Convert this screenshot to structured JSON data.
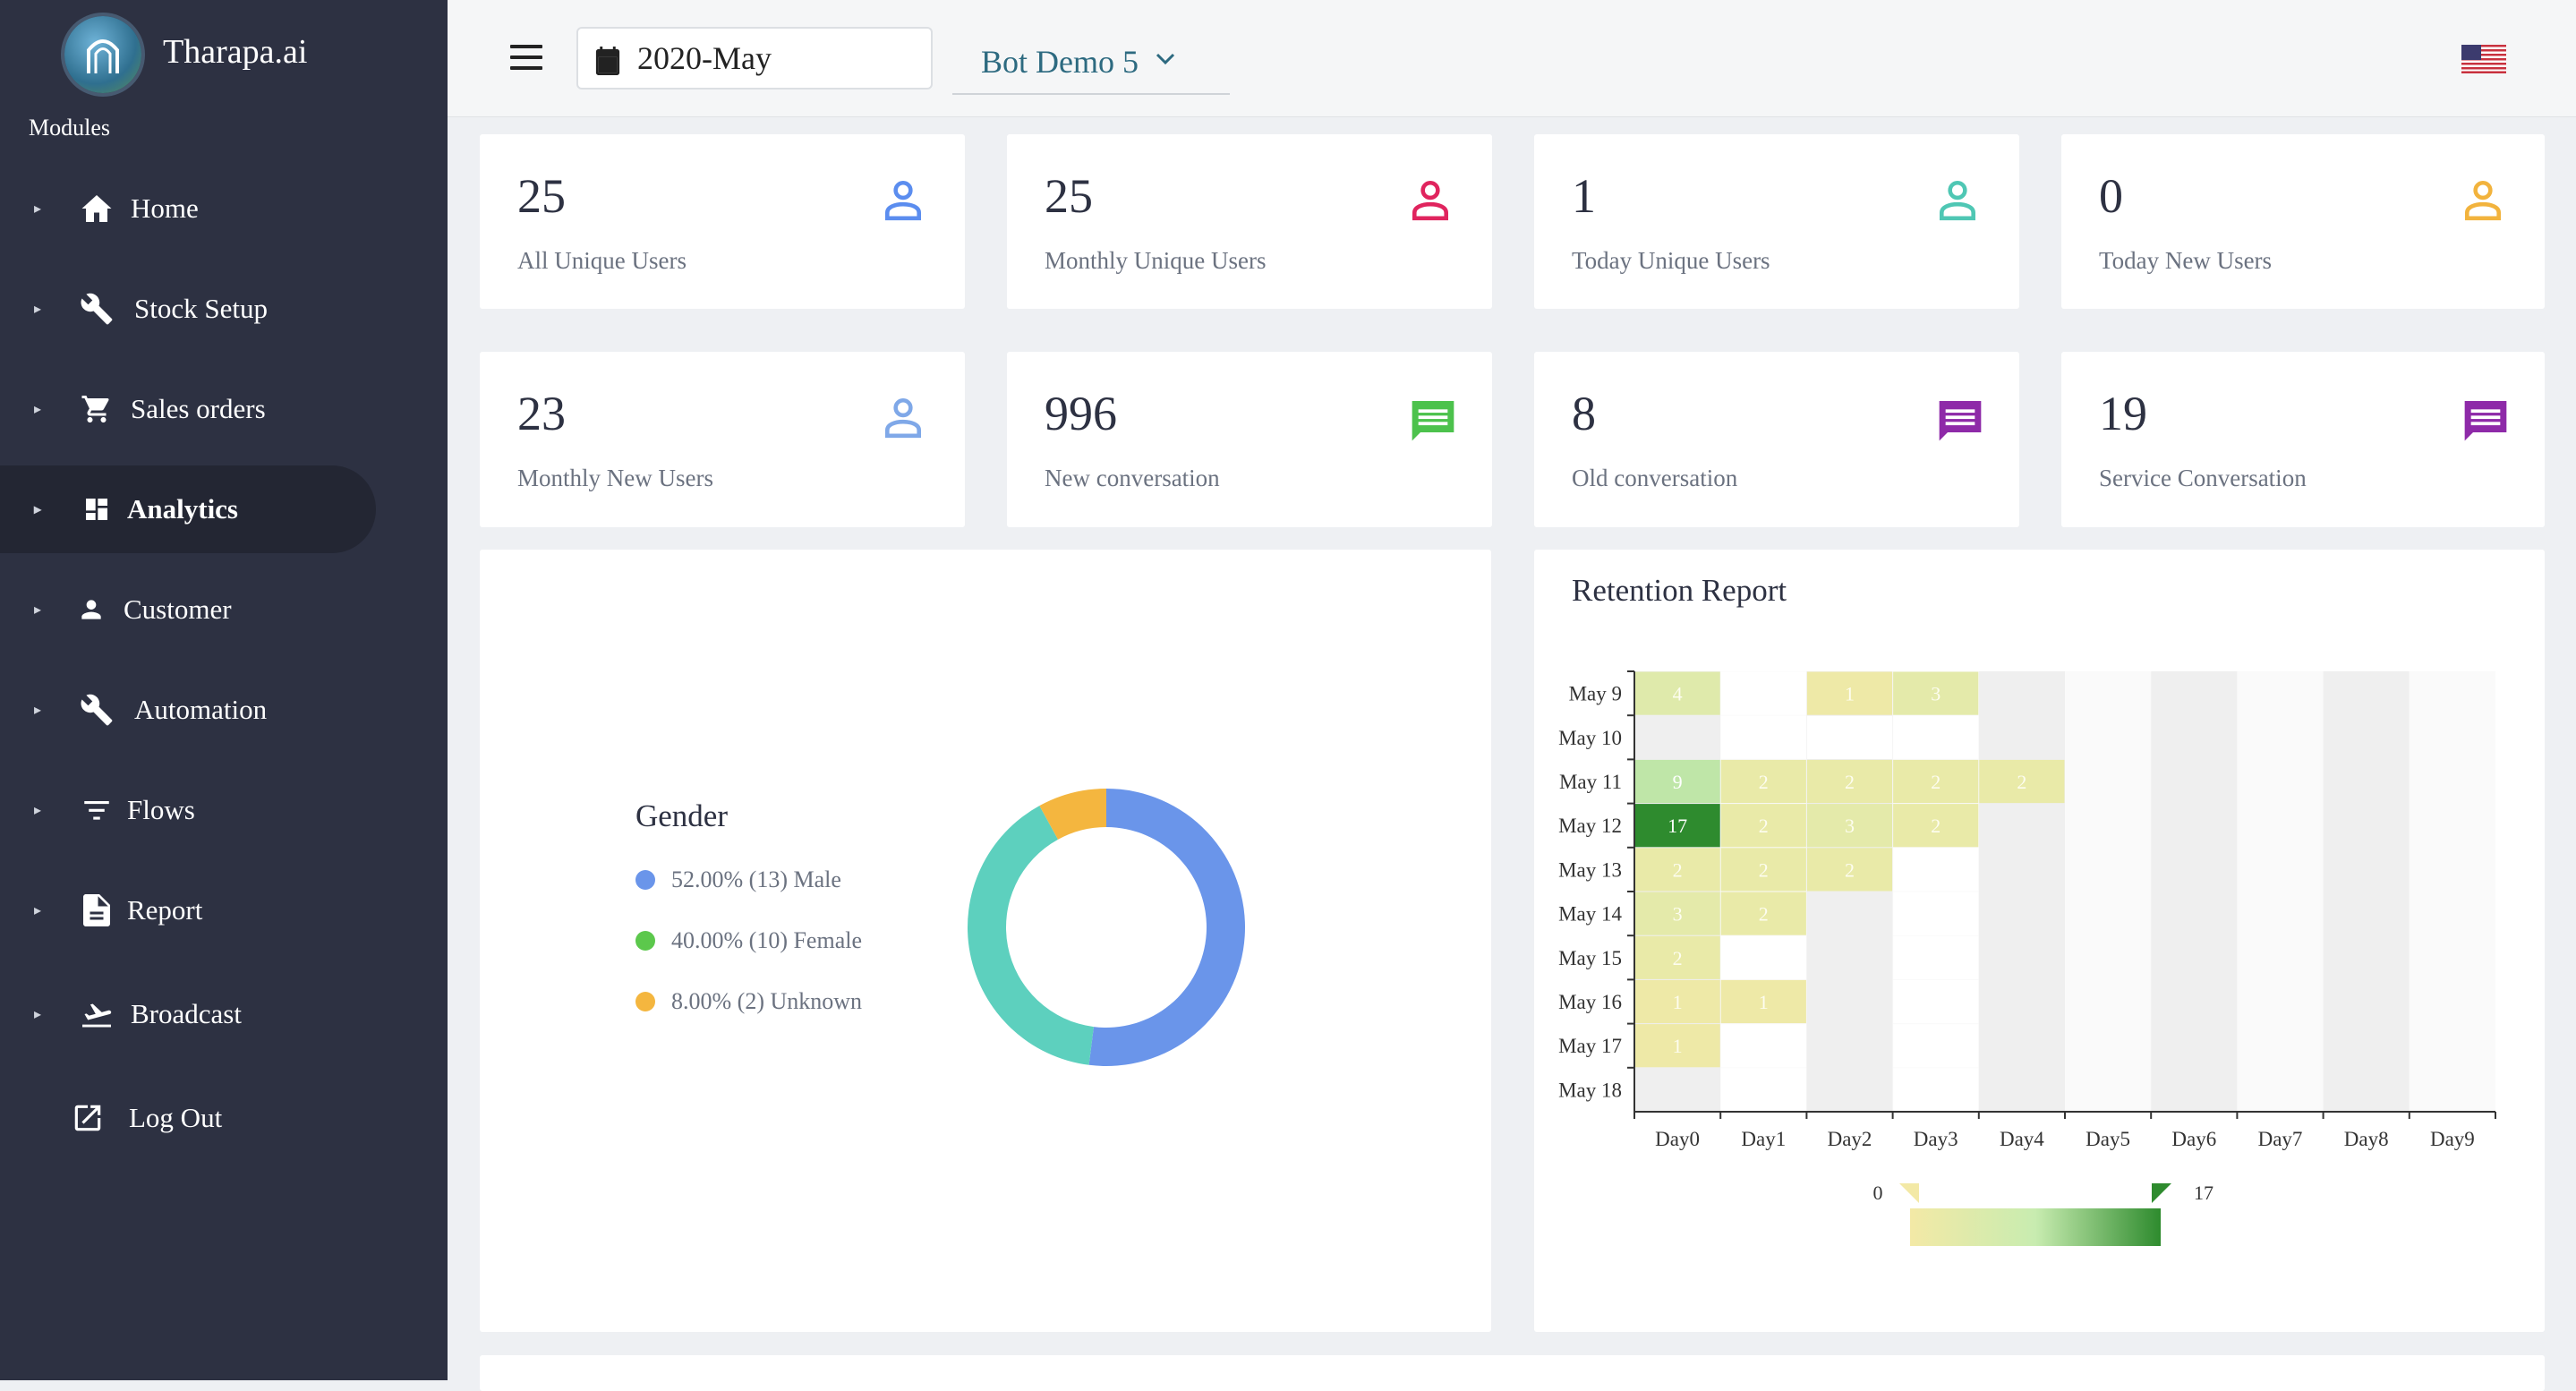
{
  "brand": {
    "name": "Tharapa.ai"
  },
  "sidebar": {
    "section_label": "Modules",
    "items": [
      {
        "label": "Home",
        "icon": "home-icon"
      },
      {
        "label": "Stock Setup",
        "icon": "wrench-icon"
      },
      {
        "label": "Sales orders",
        "icon": "cart-icon"
      },
      {
        "label": "Analytics",
        "icon": "dashboard-icon",
        "active": true
      },
      {
        "label": "Customer",
        "icon": "person-icon"
      },
      {
        "label": "Automation",
        "icon": "wrench-icon"
      },
      {
        "label": "Flows",
        "icon": "filter-icon"
      },
      {
        "label": "Report",
        "icon": "document-icon"
      },
      {
        "label": "Broadcast",
        "icon": "flight-takeoff-icon"
      },
      {
        "label": "Log Out",
        "icon": "external-link-icon"
      }
    ]
  },
  "header": {
    "date_value": "2020-May",
    "bot_selected": "Bot Demo 5",
    "language_flag": "us-flag-icon"
  },
  "stats": [
    {
      "value": "25",
      "label": "All Unique Users",
      "icon": "user-icon",
      "color": "#5b8def"
    },
    {
      "value": "25",
      "label": "Monthly Unique Users",
      "icon": "user-icon",
      "color": "#e0245e"
    },
    {
      "value": "1",
      "label": "Today Unique Users",
      "icon": "user-icon",
      "color": "#4fc7b4"
    },
    {
      "value": "0",
      "label": "Today New Users",
      "icon": "user-icon",
      "color": "#f2b33d"
    },
    {
      "value": "23",
      "label": "Monthly New Users",
      "icon": "user-icon",
      "color": "#7fa8e8"
    },
    {
      "value": "996",
      "label": "New conversation",
      "icon": "message-icon",
      "color": "#4cc24c"
    },
    {
      "value": "8",
      "label": "Old conversation",
      "icon": "message-icon",
      "color": "#8e2aa8"
    },
    {
      "value": "19",
      "label": "Service Conversation",
      "icon": "message-icon",
      "color": "#8e2aa8"
    }
  ],
  "chart_data": [
    {
      "type": "pie",
      "title": "Gender",
      "donut": true,
      "slices": [
        {
          "label": "52.00% (13) Male",
          "value": 13,
          "percent": 52.0,
          "color": "#6a95ea"
        },
        {
          "label": "40.00% (10) Female",
          "value": 10,
          "percent": 40.0,
          "color": "#5dd0be"
        },
        {
          "label": "8.00% (2) Unknown",
          "value": 2,
          "percent": 8.0,
          "color": "#f4b63f"
        }
      ],
      "legend_colors": [
        "#6a95ea",
        "#5cc84c",
        "#f4b63f"
      ],
      "legend_placement": "left"
    },
    {
      "type": "heatmap",
      "title": "Retention Report",
      "x_categories": [
        "Day0",
        "Day1",
        "Day2",
        "Day3",
        "Day4",
        "Day5",
        "Day6",
        "Day7",
        "Day8",
        "Day9"
      ],
      "y_categories": [
        "May 9",
        "May 10",
        "May 11",
        "May 12",
        "May 13",
        "May 14",
        "May 15",
        "May 16",
        "May 17",
        "May 18"
      ],
      "values": [
        [
          4,
          0,
          1,
          3,
          null,
          null,
          null,
          null,
          null,
          null
        ],
        [
          null,
          0,
          0,
          0,
          null,
          null,
          null,
          null,
          null,
          null
        ],
        [
          9,
          2,
          2,
          2,
          2,
          null,
          null,
          null,
          null,
          null
        ],
        [
          17,
          2,
          3,
          2,
          null,
          null,
          null,
          null,
          null,
          null
        ],
        [
          2,
          2,
          2,
          0,
          null,
          null,
          null,
          null,
          null,
          null
        ],
        [
          3,
          2,
          null,
          0,
          null,
          null,
          null,
          null,
          null,
          null
        ],
        [
          2,
          0,
          null,
          0,
          null,
          null,
          null,
          null,
          null,
          null
        ],
        [
          1,
          1,
          null,
          0,
          null,
          null,
          null,
          null,
          null,
          null
        ],
        [
          1,
          0,
          null,
          0,
          null,
          null,
          null,
          null,
          null,
          null
        ],
        [
          null,
          0,
          null,
          0,
          null,
          null,
          null,
          null,
          null,
          null
        ]
      ],
      "visual_map": {
        "min": 0,
        "max": 17,
        "min_label": "0",
        "max_label": "17",
        "colors": [
          "#f3e9a6",
          "#c8ecb0",
          "#2e8b2e"
        ]
      }
    }
  ]
}
